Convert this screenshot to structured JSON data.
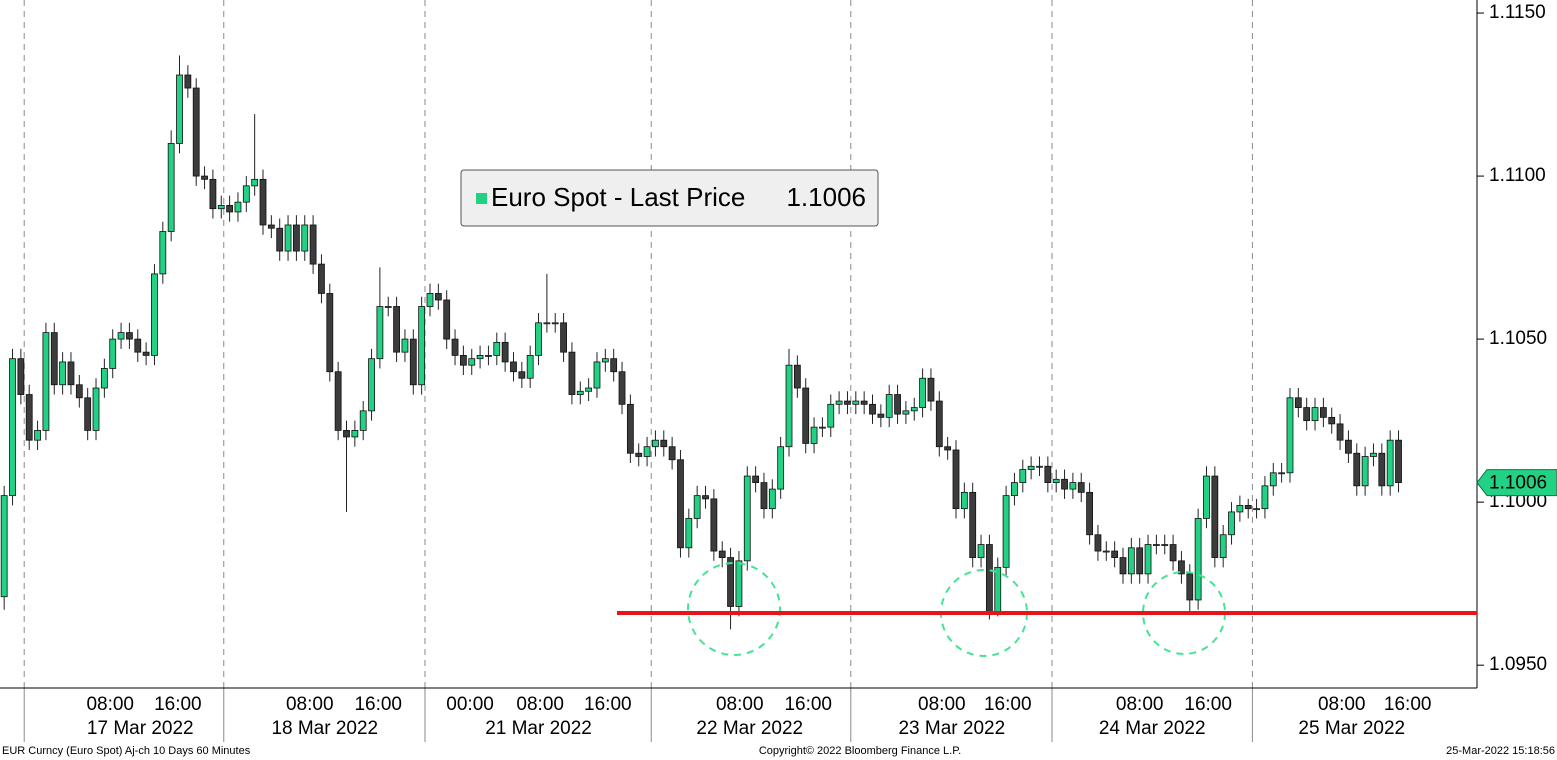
{
  "chart_data": {
    "type": "candlestick",
    "series": [
      {
        "name": "Euro Spot - Last Price",
        "up_color": "#22d183",
        "down_color": "#3c3c3c",
        "open": [
          1.0971,
          1.1002,
          1.1044,
          1.1033,
          1.1019,
          1.1022,
          1.1052,
          1.1036,
          1.1043,
          1.1036,
          1.1032,
          1.1022,
          1.1035,
          1.1041,
          1.105,
          1.1052,
          1.105,
          1.1046,
          1.1045,
          1.107,
          1.1083,
          1.111,
          1.1131,
          1.1127,
          1.11,
          1.1099,
          1.109,
          1.1091,
          1.1089,
          1.1092,
          1.1097,
          1.1099,
          1.1085,
          1.1084,
          1.1077,
          1.1085,
          1.1077,
          1.1085,
          1.1073,
          1.1064,
          1.104,
          1.1022,
          1.102,
          1.1022,
          1.1028,
          1.1044,
          1.106,
          1.106,
          1.1046,
          1.105,
          1.1036,
          1.106,
          1.1064,
          1.1062,
          1.105,
          1.1045,
          1.1042,
          1.1044,
          1.1045,
          1.1045,
          1.1049,
          1.1043,
          1.104,
          1.1038,
          1.1045,
          1.1055,
          1.1055,
          1.1055,
          1.1046,
          1.1033,
          1.1034,
          1.1035,
          1.1043,
          1.1044,
          1.104,
          1.103,
          1.1015,
          1.1014,
          1.1017,
          1.1019,
          1.1017,
          1.1013,
          1.0986,
          1.0995,
          1.1002,
          1.1001,
          1.0985,
          1.0983,
          1.0968,
          1.0982,
          1.1008,
          1.1006,
          1.0998,
          1.1004,
          1.1017,
          1.1042,
          1.1035,
          1.1018,
          1.1023,
          1.1023,
          1.103,
          1.1031,
          1.103,
          1.1031,
          1.103,
          1.1027,
          1.1026,
          1.1033,
          1.1027,
          1.1028,
          1.1029,
          1.1038,
          1.1031,
          1.1017,
          1.1016,
          1.0998,
          1.1003,
          1.0983,
          1.0987,
          1.0966,
          1.098,
          1.1002,
          1.1006,
          1.101,
          1.1011,
          1.1011,
          1.1006,
          1.1007,
          1.1004,
          1.1006,
          1.1003,
          1.099,
          1.0985,
          1.0985,
          1.0983,
          1.0978,
          1.0986,
          1.0978,
          1.0987,
          1.0987,
          1.0987,
          1.0982,
          1.0978,
          1.097,
          1.0995,
          1.1008,
          1.0983,
          1.099,
          1.0997,
          1.0999,
          1.0998,
          1.0998,
          1.1005,
          1.1009,
          1.1009,
          1.1032,
          1.1029,
          1.1025,
          1.1029,
          1.1026,
          1.1024,
          1.1019,
          1.1015,
          1.1005,
          1.1014,
          1.1015,
          1.1005,
          1.1019
        ],
        "high": [
          1.1005,
          1.1047,
          1.1047,
          1.1036,
          1.1025,
          1.1055,
          1.1055,
          1.1046,
          1.1046,
          1.1039,
          1.1035,
          1.1038,
          1.1044,
          1.1053,
          1.1055,
          1.1055,
          1.1053,
          1.1049,
          1.1073,
          1.1086,
          1.1114,
          1.1137,
          1.1134,
          1.113,
          1.1103,
          1.1102,
          1.1094,
          1.1094,
          1.1095,
          1.11,
          1.1119,
          1.1102,
          1.1088,
          1.1087,
          1.1088,
          1.1088,
          1.1088,
          1.1088,
          1.1076,
          1.1067,
          1.1043,
          1.1025,
          1.1025,
          1.1031,
          1.1047,
          1.1072,
          1.1063,
          1.1063,
          1.1053,
          1.1053,
          1.1063,
          1.1067,
          1.1067,
          1.1065,
          1.1053,
          1.1048,
          1.1047,
          1.1048,
          1.1048,
          1.1052,
          1.1052,
          1.1046,
          1.1043,
          1.1048,
          1.1058,
          1.107,
          1.1058,
          1.1058,
          1.1049,
          1.1037,
          1.1038,
          1.1046,
          1.1047,
          1.1047,
          1.1043,
          1.1033,
          1.1018,
          1.102,
          1.1022,
          1.1022,
          1.102,
          1.1016,
          1.0998,
          1.1005,
          1.1005,
          1.1004,
          1.0988,
          1.0986,
          1.0985,
          1.1011,
          1.1011,
          1.1009,
          1.1007,
          1.102,
          1.1047,
          1.1045,
          1.1038,
          1.1026,
          1.1026,
          1.1033,
          1.1034,
          1.1034,
          1.1034,
          1.1034,
          1.1033,
          1.103,
          1.1036,
          1.1036,
          1.1031,
          1.1032,
          1.1041,
          1.1041,
          1.1034,
          1.102,
          1.1019,
          1.1006,
          1.1006,
          1.099,
          1.099,
          1.0983,
          1.1005,
          1.1009,
          1.1013,
          1.1014,
          1.1014,
          1.1014,
          1.101,
          1.101,
          1.1009,
          1.1009,
          1.1006,
          1.0993,
          1.0988,
          1.0988,
          1.0986,
          1.0989,
          1.0989,
          1.099,
          1.099,
          1.099,
          1.099,
          1.0985,
          1.0981,
          1.0998,
          1.1011,
          1.1011,
          1.0993,
          1.1,
          1.1002,
          1.1001,
          1.1001,
          1.1008,
          1.1012,
          1.1012,
          1.1035,
          1.1035,
          1.1032,
          1.1032,
          1.1032,
          1.1029,
          1.1027,
          1.1022,
          1.1018,
          1.1017,
          1.1018,
          1.1018,
          1.1022,
          1.1022
        ],
        "low": [
          1.0967,
          1.0999,
          1.103,
          1.1016,
          1.1016,
          1.1019,
          1.1033,
          1.1033,
          1.1033,
          1.1029,
          1.1019,
          1.1019,
          1.1032,
          1.1038,
          1.1047,
          1.1047,
          1.1043,
          1.1042,
          1.1042,
          1.1067,
          1.108,
          1.1107,
          1.1124,
          1.1097,
          1.1096,
          1.1087,
          1.1087,
          1.1086,
          1.1086,
          1.1089,
          1.1094,
          1.1082,
          1.1081,
          1.1074,
          1.1074,
          1.1074,
          1.1074,
          1.107,
          1.1061,
          1.1037,
          1.1019,
          1.0997,
          1.1017,
          1.1019,
          1.1025,
          1.1041,
          1.1057,
          1.1043,
          1.1043,
          1.1033,
          1.1033,
          1.1057,
          1.1059,
          1.1047,
          1.1042,
          1.1039,
          1.1039,
          1.1041,
          1.1042,
          1.1042,
          1.104,
          1.1037,
          1.1035,
          1.1035,
          1.1042,
          1.1052,
          1.1052,
          1.1043,
          1.103,
          1.103,
          1.1031,
          1.1032,
          1.104,
          1.1037,
          1.1027,
          1.1012,
          1.1011,
          1.1011,
          1.1014,
          1.1014,
          1.101,
          1.0983,
          1.0983,
          1.0992,
          1.0998,
          1.0982,
          1.098,
          1.0961,
          1.0965,
          1.0979,
          1.1003,
          1.0995,
          1.0995,
          1.1001,
          1.1014,
          1.1032,
          1.1015,
          1.1015,
          1.102,
          1.102,
          1.1027,
          1.1027,
          1.1027,
          1.1027,
          1.1024,
          1.1023,
          1.1023,
          1.1024,
          1.1024,
          1.1025,
          1.1026,
          1.1028,
          1.1014,
          1.1013,
          1.0995,
          1.0995,
          1.098,
          1.098,
          1.0964,
          1.0965,
          1.0977,
          1.0999,
          1.1003,
          1.1007,
          1.1008,
          1.1003,
          1.1003,
          1.1001,
          1.1001,
          1.1,
          1.0987,
          1.0982,
          1.0982,
          1.098,
          1.0975,
          1.0975,
          1.0975,
          1.0975,
          1.0984,
          1.0984,
          1.0979,
          1.0975,
          1.0966,
          1.0967,
          1.0992,
          1.098,
          1.098,
          1.0987,
          1.0994,
          1.0995,
          1.0995,
          1.0995,
          1.1002,
          1.1006,
          1.1006,
          1.1026,
          1.1022,
          1.1022,
          1.1023,
          1.1021,
          1.1016,
          1.1012,
          1.1002,
          1.1002,
          1.1011,
          1.1002,
          1.1002,
          1.1003
        ],
        "close": [
          1.1002,
          1.1044,
          1.1033,
          1.1019,
          1.1022,
          1.1052,
          1.1036,
          1.1043,
          1.1036,
          1.1032,
          1.1022,
          1.1035,
          1.1041,
          1.105,
          1.1052,
          1.105,
          1.1046,
          1.1045,
          1.107,
          1.1083,
          1.111,
          1.1131,
          1.1127,
          1.11,
          1.1099,
          1.109,
          1.1091,
          1.1089,
          1.1092,
          1.1097,
          1.1099,
          1.1085,
          1.1084,
          1.1077,
          1.1085,
          1.1077,
          1.1085,
          1.1073,
          1.1064,
          1.104,
          1.1022,
          1.102,
          1.1022,
          1.1028,
          1.1044,
          1.106,
          1.106,
          1.1046,
          1.105,
          1.1036,
          1.106,
          1.1064,
          1.1062,
          1.105,
          1.1045,
          1.1042,
          1.1044,
          1.1045,
          1.1045,
          1.1049,
          1.1043,
          1.104,
          1.1038,
          1.1045,
          1.1055,
          1.1055,
          1.1055,
          1.1046,
          1.1033,
          1.1034,
          1.1035,
          1.1043,
          1.1044,
          1.104,
          1.103,
          1.1015,
          1.1014,
          1.1017,
          1.1019,
          1.1017,
          1.1013,
          1.0986,
          1.0995,
          1.1002,
          1.1001,
          1.0985,
          1.0983,
          1.0968,
          1.0982,
          1.1008,
          1.1006,
          1.0998,
          1.1004,
          1.1017,
          1.1042,
          1.1035,
          1.1018,
          1.1023,
          1.1023,
          1.103,
          1.1031,
          1.103,
          1.1031,
          1.103,
          1.1027,
          1.1026,
          1.1033,
          1.1027,
          1.1028,
          1.1029,
          1.1038,
          1.1031,
          1.1017,
          1.1016,
          1.0998,
          1.1003,
          1.0983,
          1.0987,
          1.0966,
          1.098,
          1.1002,
          1.1006,
          1.101,
          1.1011,
          1.1011,
          1.1006,
          1.1007,
          1.1004,
          1.1006,
          1.1003,
          1.099,
          1.0985,
          1.0985,
          1.0983,
          1.0978,
          1.0986,
          1.0978,
          1.0987,
          1.0987,
          1.0987,
          1.0982,
          1.0978,
          1.097,
          1.0995,
          1.1008,
          1.0983,
          1.099,
          1.0997,
          1.0999,
          1.0998,
          1.0998,
          1.1005,
          1.1009,
          1.1009,
          1.1032,
          1.1029,
          1.1025,
          1.1029,
          1.1026,
          1.1024,
          1.1019,
          1.1015,
          1.1005,
          1.1014,
          1.1015,
          1.1005,
          1.1019,
          1.1006
        ]
      }
    ],
    "last_price": 1.1006,
    "ylim": [
      1.0943,
      1.1154
    ],
    "yticks": [
      {
        "value": 1.095,
        "label": "1.0950"
      },
      {
        "value": 1.1,
        "label": "1.1000"
      },
      {
        "value": 1.105,
        "label": "1.1050"
      },
      {
        "value": 1.11,
        "label": "1.1100"
      },
      {
        "value": 1.115,
        "label": "1.1150"
      }
    ],
    "xlim": [
      -0.5,
      176.4
    ],
    "xticks": [
      {
        "value": 12.7,
        "label": "08:00"
      },
      {
        "value": 20.8,
        "label": "16:00"
      },
      {
        "value": 36.6,
        "label": "08:00"
      },
      {
        "value": 44.8,
        "label": "16:00"
      },
      {
        "value": 55.8,
        "label": "00:00"
      },
      {
        "value": 64.2,
        "label": "08:00"
      },
      {
        "value": 72.3,
        "label": "16:00"
      },
      {
        "value": 88.1,
        "label": "08:00"
      },
      {
        "value": 96.3,
        "label": "16:00"
      },
      {
        "value": 112.3,
        "label": "08:00"
      },
      {
        "value": 120.2,
        "label": "16:00"
      },
      {
        "value": 136,
        "label": "08:00"
      },
      {
        "value": 144.2,
        "label": "16:00"
      },
      {
        "value": 160.2,
        "label": "08:00"
      },
      {
        "value": 168.1,
        "label": "16:00"
      }
    ],
    "date_ticks": [
      {
        "value": 16.3,
        "label": "17 Mar 2022"
      },
      {
        "value": 38.4,
        "label": "18 Mar 2022"
      },
      {
        "value": 64,
        "label": "21 Mar 2022"
      },
      {
        "value": 89.3,
        "label": "22 Mar 2022"
      },
      {
        "value": 113.5,
        "label": "23 Mar 2022"
      },
      {
        "value": 137.5,
        "label": "24 Mar 2022"
      },
      {
        "value": 161.4,
        "label": "25 Mar 2022"
      }
    ],
    "day_breaks": [
      2.4,
      26.3,
      50.4,
      77.5,
      101.4,
      125.5,
      149.5
    ],
    "grid": false,
    "support": {
      "value": 1.0966,
      "from": 73.4,
      "color": "#e8141c"
    }
  },
  "footer": {
    "left": "EUR Curncy (Euro Spot) Aj-ch 10 Days 60 Minutes",
    "center": "Copyright© 2022 Bloomberg Finance L.P.",
    "right": "25-Mar-2022 15:18:56"
  }
}
